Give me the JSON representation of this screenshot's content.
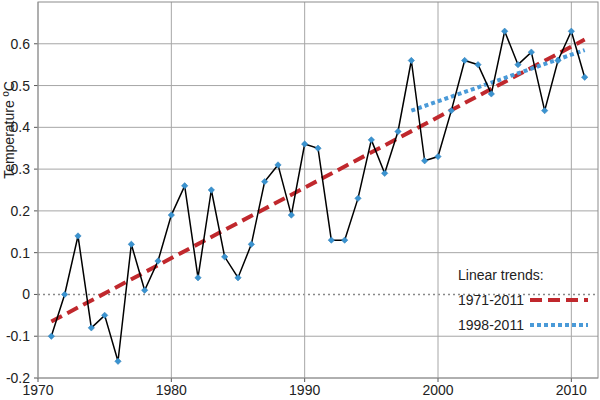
{
  "chart_data": {
    "type": "line",
    "y_label": "Temperature ºC",
    "legend_title": "Linear trends:",
    "x": [
      1971,
      1972,
      1973,
      1974,
      1975,
      1976,
      1977,
      1978,
      1979,
      1980,
      1981,
      1982,
      1983,
      1984,
      1985,
      1986,
      1987,
      1988,
      1989,
      1990,
      1991,
      1992,
      1993,
      1994,
      1995,
      1996,
      1997,
      1998,
      1999,
      2000,
      2001,
      2002,
      2003,
      2004,
      2005,
      2006,
      2007,
      2008,
      2009,
      2010,
      2011
    ],
    "xlim": [
      1970,
      2012
    ],
    "xticks": [
      1970,
      1980,
      1990,
      2000,
      2010
    ],
    "ylim": [
      -0.2,
      0.7
    ],
    "yticks": [
      -0.2,
      -0.1,
      0,
      0.1,
      0.2,
      0.3,
      0.4,
      0.5,
      0.6
    ],
    "grid": true,
    "series": [
      {
        "color": "#000000",
        "marker": "diamond",
        "values": [
          -0.1,
          0.0,
          0.14,
          -0.08,
          -0.05,
          -0.16,
          0.12,
          0.01,
          0.08,
          0.19,
          0.26,
          0.04,
          0.25,
          0.09,
          0.04,
          0.12,
          0.27,
          0.31,
          0.19,
          0.36,
          0.35,
          0.13,
          0.13,
          0.23,
          0.37,
          0.29,
          0.39,
          0.56,
          0.32,
          0.33,
          0.44,
          0.56,
          0.55,
          0.48,
          0.63,
          0.55,
          0.58,
          0.44,
          0.56,
          0.63,
          0.52
        ]
      },
      {
        "name": "1971-2011",
        "x": [
          1971,
          2011
        ],
        "values": [
          -0.065,
          0.61
        ],
        "color": "#c0282d",
        "line_style": "dashed"
      },
      {
        "name": "1998-2011",
        "x": [
          1998,
          2011
        ],
        "values": [
          0.44,
          0.585
        ],
        "color": "#4a9ad8",
        "line_style": "dotted"
      }
    ]
  }
}
